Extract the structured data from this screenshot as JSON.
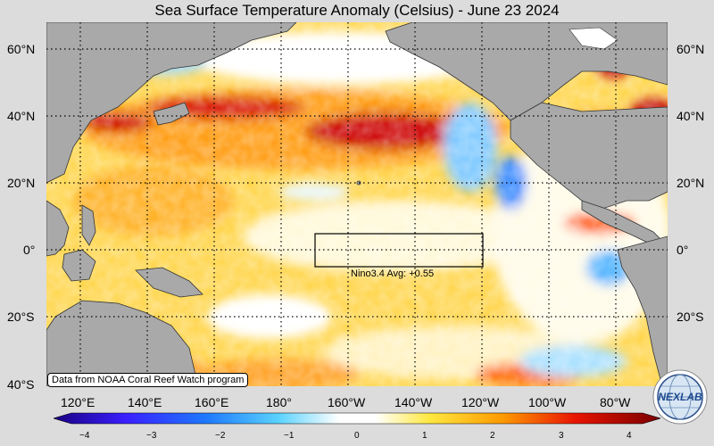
{
  "title": "Sea Surface Temperature Anomaly (Celsius) - June 23 2024",
  "latitude_labels": [
    "60°N",
    "40°N",
    "20°N",
    "0°",
    "20°S",
    "40°S"
  ],
  "longitude_labels": [
    "120°E",
    "140°E",
    "160°E",
    "180°",
    "160°W",
    "140°W",
    "120°W",
    "100°W",
    "80°W"
  ],
  "box": {
    "label": "Nino3.4 Avg: +0.55"
  },
  "credit": "Data from NOAA Coral Reef Watch program",
  "colorbar": {
    "ticks": [
      "−4",
      "−3",
      "−2",
      "−1",
      "0",
      "1",
      "2",
      "3",
      "4"
    ]
  },
  "logo_text": "NEXLAB",
  "colors": {
    "land": "#a9a9a9",
    "ocean_base": "#ffd24a",
    "warm": "#c80000",
    "cool": "#4aa8ff"
  }
}
